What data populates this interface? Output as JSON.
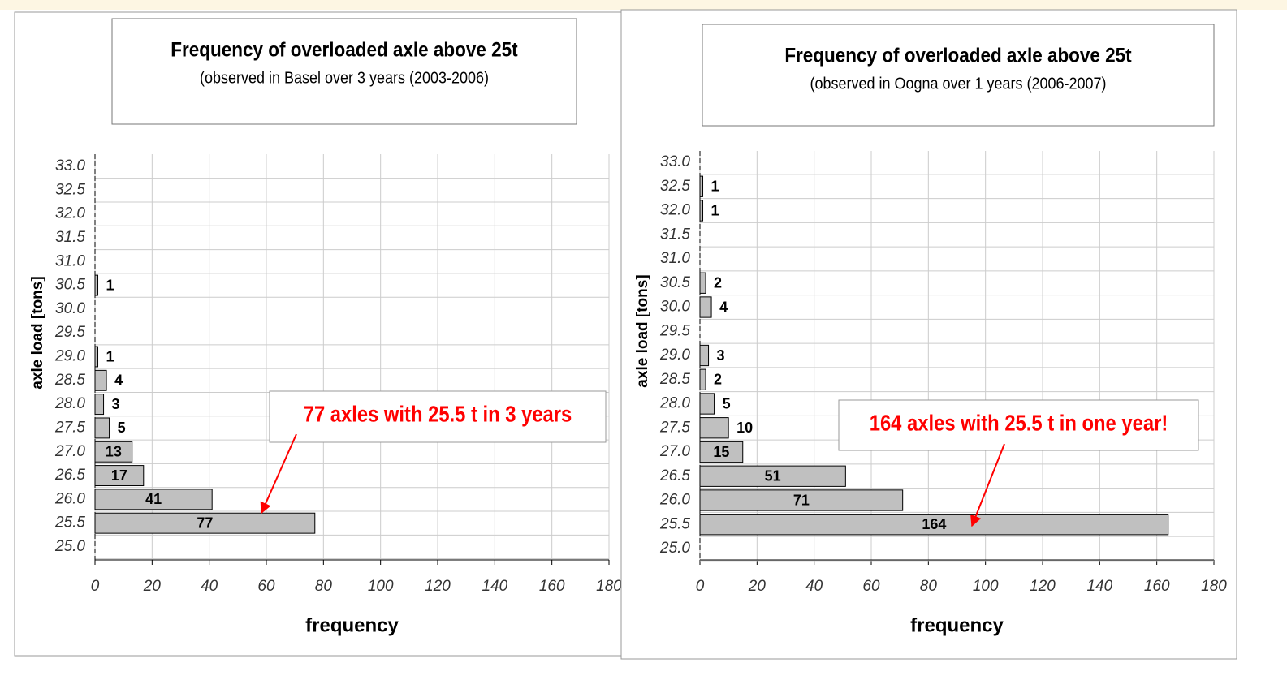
{
  "chart_data": [
    {
      "type": "bar",
      "title": "Frequency of overloaded axle above 25t",
      "subtitle": "(observed in Basel over 3 years (2003-2006)",
      "xlabel": "frequency",
      "ylabel": "axle load [tons]",
      "categories": [
        "25.0",
        "25.5",
        "26.0",
        "26.5",
        "27.0",
        "27.5",
        "28.0",
        "28.5",
        "29.0",
        "29.5",
        "30.0",
        "30.5",
        "31.0",
        "31.5",
        "32.0",
        "32.5",
        "33.0"
      ],
      "values": [
        0,
        77,
        41,
        17,
        13,
        5,
        3,
        4,
        1,
        0,
        0,
        1,
        0,
        0,
        0,
        0,
        0
      ],
      "color": "#c0c0c0",
      "xlim": [
        0,
        180
      ],
      "xticks": [
        0,
        20,
        40,
        60,
        80,
        100,
        120,
        140,
        160,
        180
      ],
      "grid": true,
      "annotation": "77 axles with 25.5 t in 3 years"
    },
    {
      "type": "bar",
      "title": "Frequency of overloaded axle above 25t",
      "subtitle": "(observed in Oogna over 1 years (2006-2007)",
      "xlabel": "frequency",
      "ylabel": "axle load [tons]",
      "categories": [
        "25.0",
        "25.5",
        "26.0",
        "26.5",
        "27.0",
        "27.5",
        "28.0",
        "28.5",
        "29.0",
        "29.5",
        "30.0",
        "30.5",
        "31.0",
        "31.5",
        "32.0",
        "32.5",
        "33.0"
      ],
      "values": [
        0,
        164,
        71,
        51,
        15,
        10,
        5,
        2,
        3,
        0,
        4,
        2,
        0,
        0,
        1,
        1,
        0
      ],
      "color": "#c0c0c0",
      "xlim": [
        0,
        180
      ],
      "xticks": [
        0,
        20,
        40,
        60,
        80,
        100,
        120,
        140,
        160,
        180
      ],
      "grid": true,
      "annotation": "164 axles with 25.5 t in one year!"
    }
  ]
}
